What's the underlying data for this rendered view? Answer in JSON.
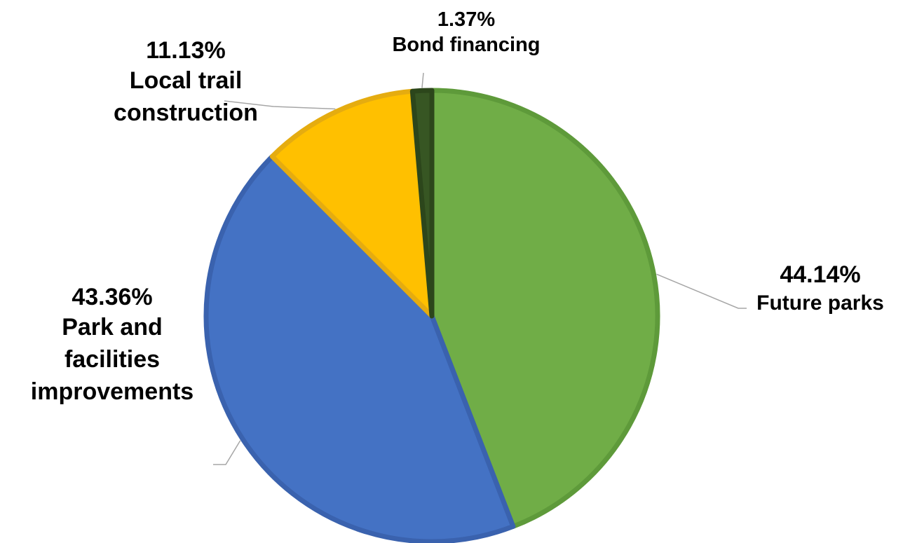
{
  "chart_data": {
    "type": "pie",
    "title": "",
    "slices": [
      {
        "name": "Future parks",
        "value": 44.14,
        "label": "44.14%",
        "color": "#70AD47",
        "border": "#5E9A3A"
      },
      {
        "name": "Park and facilities improvements",
        "value": 43.36,
        "label": "43.36%",
        "color": "#4472C4",
        "border": "#3A62AE"
      },
      {
        "name": "Local trail construction",
        "value": 11.13,
        "label": "11.13%",
        "color": "#FFC000",
        "border": "#E5AC10"
      },
      {
        "name": "Bond financing",
        "value": 1.37,
        "label": "1.37%",
        "color": "#375623",
        "border": "#2C461B"
      }
    ],
    "legend": "none",
    "leader_line_color": "#A6A6A6"
  }
}
